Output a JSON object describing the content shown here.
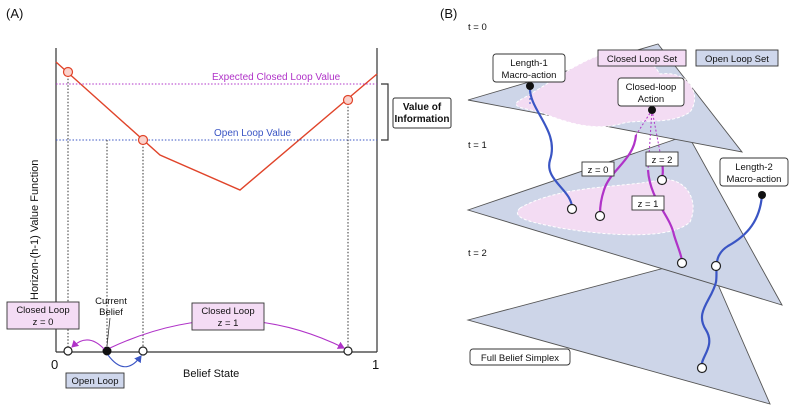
{
  "panel_a": {
    "label": "(A)",
    "y_axis_label": "Horizon-(h-1) Value Function",
    "x_axis_label": "Belief State",
    "x_tick_0": "0",
    "x_tick_1": "1",
    "expected_closed_loop_value": "Expected Closed Loop Value",
    "open_loop_value": "Open Loop Value",
    "value_of_information": [
      "Value of",
      "Information"
    ],
    "current_belief": [
      "Current",
      "Belief"
    ],
    "closed_loop_z0": [
      "Closed Loop",
      "z = 0"
    ],
    "closed_loop_z1": [
      "Closed Loop",
      "z = 1"
    ],
    "open_loop": "Open Loop"
  },
  "panel_b": {
    "label": "(B)",
    "t0": "t = 0",
    "t1": "t = 1",
    "t2": "t = 2",
    "length1_macro": [
      "Length-1",
      "Macro-action"
    ],
    "closed_loop_set": "Closed Loop Set",
    "open_loop_set": "Open Loop Set",
    "closed_loop_action": [
      "Closed-loop",
      "Action"
    ],
    "z0": "z = 0",
    "z1": "z = 1",
    "z2": "z = 2",
    "length2_macro": [
      "Length-2",
      "Macro-action"
    ],
    "full_belief_simplex": "Full Belief Simplex"
  },
  "colors": {
    "value_line": "#e0442a",
    "closed_loop": "#b033c8",
    "open_loop": "#3a55c4",
    "plane": "#cdd5e8",
    "closed_set": "#f3dcf3"
  }
}
